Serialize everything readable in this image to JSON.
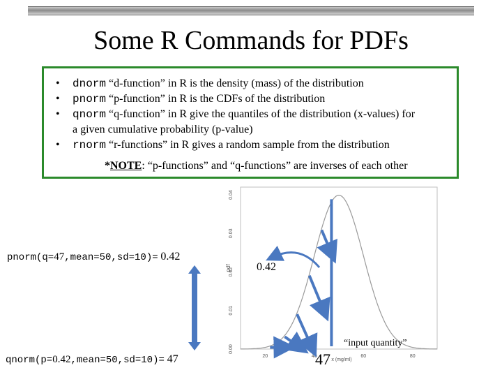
{
  "title": "Some R Commands for PDFs",
  "bullets": [
    {
      "marker": "•",
      "code": "dnorm",
      "text": "“d-function” in R is the density (mass) of the distribution"
    },
    {
      "marker": "•",
      "code": "pnorm",
      "text": "“p-function” in R is the CDFs of the distribution"
    },
    {
      "marker": "•",
      "code": "qnorm",
      "text": "“q-function” in R give the quantiles of the distribution (x-values) for",
      "text2": "a given cumulative probability (p-value)"
    },
    {
      "marker": "•",
      "code": "rnorm",
      "text": "“r-functions” in R gives a random sample from the distribution"
    }
  ],
  "note": {
    "prefix": "*",
    "label": "NOTE",
    "text": ": “p-functions” and “q-functions” are inverses of each other"
  },
  "pnorm_cmd": {
    "code1": "pnorm(q=",
    "arg": "47",
    "code2": ",mean=50,sd=10)=",
    "result": "0.42"
  },
  "qnorm_cmd": {
    "code1": "qnorm(p=",
    "arg": "0.42",
    "code2": ",mean=50,sd=10)=",
    "result": "47"
  },
  "plot_labels": {
    "area_value": "0.42",
    "input_quantity": "“input quantity”",
    "input_value": "47",
    "xlabel": "x (mg/ml)",
    "ylabel": "pdf",
    "x_ticks": [
      "20",
      "40",
      "60",
      "80"
    ],
    "y_ticks": [
      "0.00",
      "0.01",
      "0.02",
      "0.03",
      "0.04"
    ]
  },
  "chart_data": {
    "type": "line",
    "distribution": "normal",
    "mean": 50,
    "sd": 10,
    "xlim": [
      10,
      90
    ],
    "ylim": [
      0,
      0.042
    ],
    "shaded_upto": 47,
    "shaded_area": 0.42
  },
  "colors": {
    "box_border": "#2b8a2b",
    "arrow_blue": "#4a78c0",
    "curve": "#9a9a9a"
  }
}
